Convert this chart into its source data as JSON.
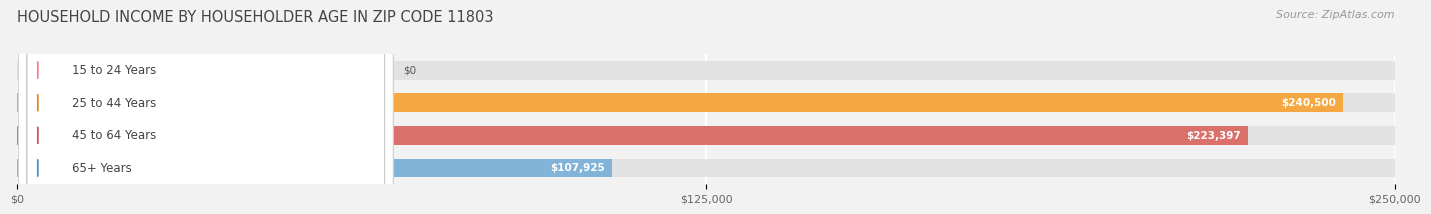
{
  "title": "HOUSEHOLD INCOME BY HOUSEHOLDER AGE IN ZIP CODE 11803",
  "source": "Source: ZipAtlas.com",
  "categories": [
    "15 to 24 Years",
    "25 to 44 Years",
    "45 to 64 Years",
    "65+ Years"
  ],
  "values": [
    0,
    240500,
    223397,
    107925
  ],
  "bar_colors": [
    "#f5a0b0",
    "#f5a742",
    "#d9706a",
    "#82b4d9"
  ],
  "circle_colors": [
    "#f08090",
    "#e08828",
    "#cc5555",
    "#5090c0"
  ],
  "xlim_max": 250000,
  "xticks": [
    0,
    125000,
    250000
  ],
  "xtick_labels": [
    "$0",
    "$125,000",
    "$250,000"
  ],
  "bg_color": "#f2f2f2",
  "bar_bg_color": "#e2e2e2",
  "title_fontsize": 10.5,
  "source_fontsize": 8,
  "label_fontsize": 8.5,
  "value_fontsize": 7.5
}
